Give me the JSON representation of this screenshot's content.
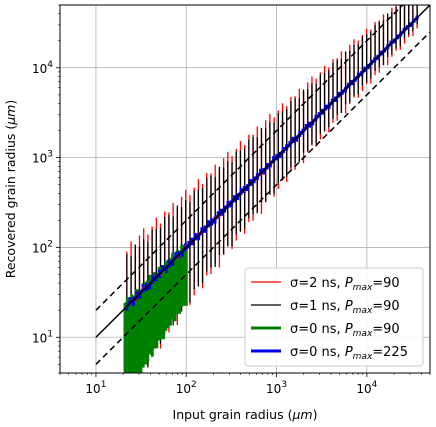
{
  "chart_data": {
    "type": "scatter",
    "title": "",
    "xlabel": {
      "text": "Input grain radius (",
      "symbol": "μm",
      "close": ")"
    },
    "ylabel": {
      "text": "Recovered grain radius (",
      "symbol": "μm",
      "close": ")"
    },
    "xscale": "log",
    "yscale": "log",
    "xlim": [
      4,
      50000
    ],
    "ylim": [
      4,
      50000
    ],
    "grid": true,
    "x_ticks": [
      {
        "value": 10,
        "base": "10",
        "exp": "1"
      },
      {
        "value": 100,
        "base": "10",
        "exp": "2"
      },
      {
        "value": 1000,
        "base": "10",
        "exp": "3"
      },
      {
        "value": 10000,
        "base": "10",
        "exp": "4"
      }
    ],
    "y_ticks": [
      {
        "value": 10,
        "base": "10",
        "exp": "1"
      },
      {
        "value": 100,
        "base": "10",
        "exp": "2"
      },
      {
        "value": 1000,
        "base": "10",
        "exp": "3"
      },
      {
        "value": 10000,
        "base": "10",
        "exp": "4"
      }
    ],
    "reference_lines": [
      {
        "style": "solid",
        "factor": 1,
        "x_range": [
          10,
          50000
        ],
        "color": "#000000"
      },
      {
        "style": "dashed",
        "factor": 2,
        "x_range": [
          10,
          50000
        ],
        "color": "#000000"
      },
      {
        "style": "dashed",
        "factor": 0.5,
        "x_range": [
          10,
          50000
        ],
        "color": "#000000"
      }
    ],
    "legend_position": "lower-right",
    "series": [
      {
        "legend_prefix": "σ=2 ns, ",
        "p_symbol": "P",
        "p_sub": "max",
        "p_value": "=90",
        "color": "#ff0000",
        "linewidth": 1.3,
        "x_range": [
          22,
          36000
        ],
        "n_points": 70,
        "low_err_small": 0.92,
        "low_err_large": 0.25,
        "high_err_small": 3.3,
        "high_err_large": 1.2,
        "offsets": [
          -0.02,
          0.05,
          -0.08,
          0.03,
          0.07,
          -0.05,
          0.0,
          0.06,
          -0.06,
          0.04
        ]
      },
      {
        "legend_prefix": "σ=1 ns, ",
        "p_symbol": "P",
        "p_sub": "max",
        "p_value": "=90",
        "color": "#000000",
        "linewidth": 1.3,
        "x_range": [
          22,
          36000
        ],
        "n_points": 70,
        "low_err_small": 0.92,
        "low_err_large": 0.17,
        "high_err_small": 2.6,
        "high_err_large": 1.1,
        "offsets": [
          0.03,
          -0.04,
          0.05,
          -0.02,
          0.02,
          -0.06,
          0.04,
          0.0,
          -0.03,
          0.05
        ]
      },
      {
        "legend_prefix": "σ=0 ns, ",
        "p_symbol": "P",
        "p_sub": "max",
        "p_value": "=90",
        "color": "#008000",
        "linewidth": 3,
        "x_range": [
          21,
          100
        ],
        "n_points": 28,
        "low_err_small": 0.92,
        "low_err_large": 0.15,
        "high_err_small": 0.15,
        "high_err_large": 0.08,
        "offsets": [
          0.0,
          0.04,
          -0.03,
          0.02,
          -0.02,
          0.03,
          0.0,
          -0.04,
          0.02,
          0.01
        ]
      },
      {
        "legend_prefix": "σ=0 ns, ",
        "p_symbol": "P",
        "p_sub": "max",
        "p_value": "=225",
        "color": "#0000ee",
        "linewidth": 3,
        "x_range": [
          22,
          36000
        ],
        "n_points": 90,
        "low_err_small": 0.1,
        "low_err_large": 0.05,
        "high_err_small": 0.12,
        "high_err_large": 0.06,
        "offsets": [
          0.0,
          0.02,
          -0.02,
          0.01,
          -0.01,
          0.02,
          0.0,
          -0.02,
          0.01,
          0.0
        ]
      }
    ]
  }
}
